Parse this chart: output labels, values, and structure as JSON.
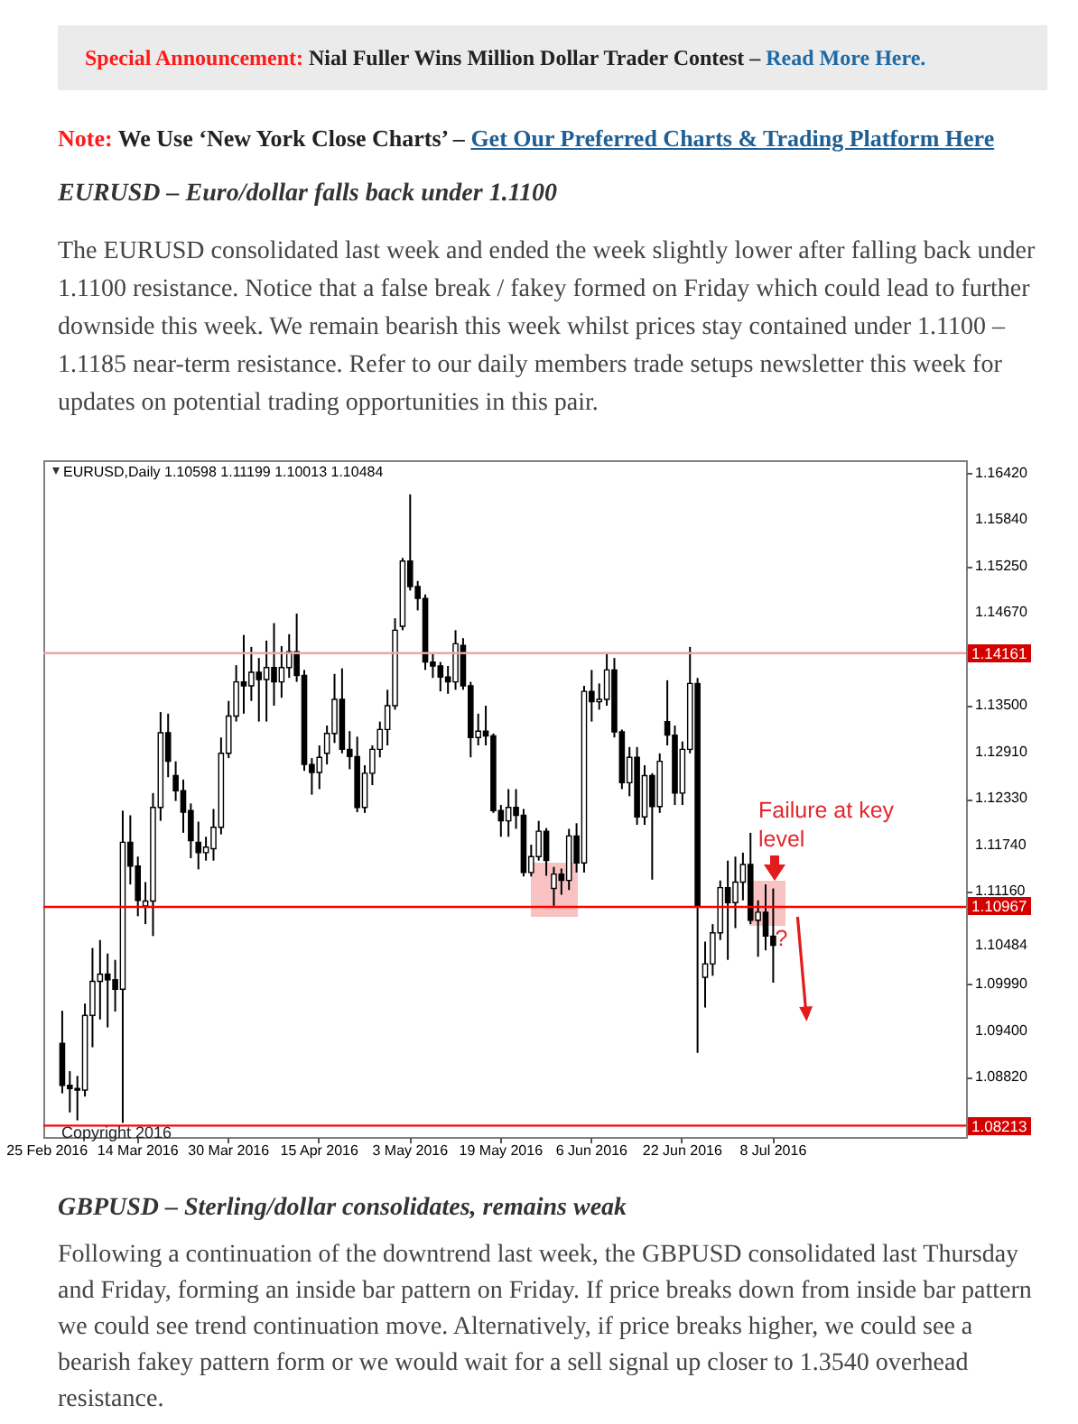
{
  "chart_data": {
    "type": "candlestick",
    "title": "EURUSD – Euro/dollar falls back under 1.1100",
    "subtitle": "The EURUSD consolidated last week and ended the week slightly lower after falling back under 1.1100 resistance. Notice that a false break / fakey formed on Friday which could lead to further downside this week. We remain bearish this week whilst prices stay contained under 1.1100 – 1.1185 near-term resistance. Refer to our daily members trade setups newsletter this week for updates on potential trading opportunities in this pair.",
    "annotations": [
      "Special Announcement:",
      "Nial Fuller Wins Million Dollar Trader Contest –",
      "Read More Here.",
      "Note:",
      "We Use ‘New York Close Charts’ –",
      "Get Our Preferred Charts & Trading Platform Here",
      "EURUSD,Daily 1.10598 1.11199 1.10013 1.10484",
      "Copyright 2016",
      "Failure at key level",
      {
        "text": "?",
        "x": "8 Jul 2016",
        "y": 1.1057
      },
      "GBPUSD – Sterling/dollar consolidates, remains weak",
      "Following a continuation of the downtrend last week, the GBPUSD consolidated last Thursday and Friday, forming an inside bar pattern on Friday. If price breaks down from inside bar pattern we could see trend continuation move. Alternatively, if price breaks higher, we could see a bearish fakey pattern form or we would wait for a sell signal up closer to 1.3540 overhead resistance."
    ],
    "categories": [
      "25 Feb 2016",
      null,
      null,
      null,
      null,
      null,
      null,
      null,
      null,
      null,
      null,
      null,
      "14 Mar 2016",
      null,
      null,
      null,
      null,
      null,
      null,
      null,
      null,
      null,
      null,
      null,
      "30 Mar 2016",
      null,
      null,
      null,
      null,
      null,
      null,
      null,
      null,
      null,
      null,
      null,
      "15 Apr 2016",
      null,
      null,
      null,
      null,
      null,
      null,
      null,
      null,
      null,
      null,
      null,
      "3 May 2016",
      null,
      null,
      null,
      null,
      null,
      null,
      null,
      null,
      null,
      null,
      null,
      "19 May 2016",
      null,
      null,
      null,
      null,
      null,
      null,
      null,
      null,
      null,
      null,
      null,
      "6 Jun 2016",
      null,
      null,
      null,
      null,
      null,
      null,
      null,
      null,
      null,
      null,
      null,
      "22 Jun 2016",
      null,
      null,
      null,
      null,
      null,
      null,
      null,
      null,
      null,
      null,
      null,
      "8 Jul 2016",
      null,
      null,
      null,
      null,
      null,
      null,
      null,
      null,
      null,
      null,
      null,
      null,
      null,
      null,
      null,
      null,
      null,
      null,
      null,
      null,
      null,
      null,
      null,
      null,
      null
    ],
    "ohlc": [
      null,
      null,
      [
        1.0925,
        1.0966,
        1.0862,
        1.0872
      ],
      [
        1.0872,
        1.089,
        1.0838,
        1.0868
      ],
      [
        1.0868,
        1.0884,
        1.0828,
        1.0866
      ],
      [
        1.0866,
        1.0975,
        1.0858,
        1.096
      ],
      [
        1.096,
        1.1045,
        1.092,
        1.1003
      ],
      [
        1.1003,
        1.1055,
        1.0955,
        1.1012
      ],
      [
        1.1012,
        1.1038,
        1.0945,
        1.1005
      ],
      [
        1.1005,
        1.103,
        1.0965,
        1.0993
      ],
      [
        1.0993,
        1.1218,
        1.0825,
        1.1178
      ],
      [
        1.1178,
        1.1212,
        1.1125,
        1.1148
      ],
      [
        1.1148,
        1.116,
        1.1085,
        1.1105
      ],
      [
        1.1098,
        1.1128,
        1.1075,
        1.1104
      ],
      [
        1.1104,
        1.124,
        1.106,
        1.1222
      ],
      [
        1.1222,
        1.1342,
        1.1205,
        1.1316
      ],
      [
        1.1316,
        1.134,
        1.126,
        1.128
      ],
      [
        1.1262,
        1.128,
        1.123,
        1.1243
      ],
      [
        1.1243,
        1.1257,
        1.119,
        1.1216
      ],
      [
        1.1218,
        1.1227,
        1.1158,
        1.118
      ],
      [
        1.1178,
        1.1204,
        1.1144,
        1.1165
      ],
      [
        1.1165,
        1.1185,
        1.1155,
        1.1172
      ],
      [
        1.117,
        1.122,
        1.1155,
        1.1197
      ],
      [
        1.1197,
        1.131,
        1.1188,
        1.129
      ],
      [
        1.129,
        1.1356,
        1.1284,
        1.1337
      ],
      [
        1.1337,
        1.1401,
        1.133,
        1.138
      ],
      [
        1.138,
        1.1439,
        1.134,
        1.1375
      ],
      [
        1.1375,
        1.1424,
        1.1356,
        1.1392
      ],
      [
        1.1392,
        1.141,
        1.133,
        1.1383
      ],
      [
        1.1383,
        1.1432,
        1.133,
        1.1398
      ],
      [
        1.1398,
        1.1454,
        1.135,
        1.138
      ],
      [
        1.138,
        1.1425,
        1.136,
        1.1398
      ],
      [
        1.1398,
        1.144,
        1.1385,
        1.1418
      ],
      [
        1.1418,
        1.1466,
        1.138,
        1.1388
      ],
      [
        1.1388,
        1.1395,
        1.1268,
        1.1276
      ],
      [
        1.1276,
        1.1284,
        1.1238,
        1.1266
      ],
      [
        1.1266,
        1.13,
        1.1245,
        1.1285
      ],
      [
        1.129,
        1.1325,
        1.1276,
        1.1315
      ],
      [
        1.1315,
        1.139,
        1.1303,
        1.1358
      ],
      [
        1.1358,
        1.1397,
        1.129,
        1.1295
      ],
      [
        1.1295,
        1.1318,
        1.127,
        1.1286
      ],
      [
        1.1286,
        1.1311,
        1.1216,
        1.1222
      ],
      [
        1.1222,
        1.1275,
        1.1215,
        1.1265
      ],
      [
        1.1265,
        1.13,
        1.125,
        1.1295
      ],
      [
        1.1295,
        1.133,
        1.1285,
        1.132
      ],
      [
        1.132,
        1.137,
        1.13,
        1.135
      ],
      [
        1.135,
        1.146,
        1.1345,
        1.1445
      ],
      [
        1.145,
        1.1536,
        1.1445,
        1.1532
      ],
      [
        1.1532,
        1.1616,
        1.1495,
        1.15
      ],
      [
        1.15,
        1.1507,
        1.147,
        1.1485
      ],
      [
        1.1485,
        1.149,
        1.1395,
        1.1405
      ],
      [
        1.1405,
        1.1416,
        1.1385,
        1.14
      ],
      [
        1.14,
        1.1405,
        1.1368,
        1.1386
      ],
      [
        1.1386,
        1.14,
        1.1365,
        1.138
      ],
      [
        1.138,
        1.1445,
        1.137,
        1.1428
      ],
      [
        1.1426,
        1.1435,
        1.137,
        1.1375
      ],
      [
        1.1375,
        1.138,
        1.1285,
        1.131
      ],
      [
        1.131,
        1.134,
        1.13,
        1.1318
      ],
      [
        1.1318,
        1.135,
        1.13,
        1.1312
      ],
      [
        1.1312,
        1.1315,
        1.1215,
        1.1218
      ],
      [
        1.1218,
        1.1225,
        1.1185,
        1.1205
      ],
      [
        1.1205,
        1.1245,
        1.1185,
        1.1222
      ],
      [
        1.1222,
        1.1245,
        1.1195,
        1.1212
      ],
      [
        1.1212,
        1.122,
        1.1135,
        1.114
      ],
      [
        1.114,
        1.1175,
        1.1135,
        1.116
      ],
      [
        1.116,
        1.1205,
        1.1155,
        1.1192
      ],
      [
        1.1192,
        1.1196,
        1.1136,
        1.1155
      ],
      [
        1.112,
        1.1147,
        1.1098,
        1.1138
      ],
      [
        1.1138,
        1.1145,
        1.1112,
        1.113
      ],
      [
        1.113,
        1.1195,
        1.1118,
        1.1186
      ],
      [
        1.1186,
        1.1202,
        1.114,
        1.1152
      ],
      [
        1.1152,
        1.1375,
        1.114,
        1.1368
      ],
      [
        1.1368,
        1.1395,
        1.133,
        1.1355
      ],
      [
        1.1355,
        1.1378,
        1.1345,
        1.1358
      ],
      [
        1.1358,
        1.1416,
        1.135,
        1.1395
      ],
      [
        1.1395,
        1.141,
        1.131,
        1.1317
      ],
      [
        1.1317,
        1.132,
        1.1245,
        1.1253
      ],
      [
        1.1253,
        1.1298,
        1.1236,
        1.1285
      ],
      [
        1.1285,
        1.1298,
        1.12,
        1.121
      ],
      [
        1.121,
        1.1275,
        1.12,
        1.1262
      ],
      [
        1.1262,
        1.1265,
        1.1131,
        1.1223
      ],
      [
        1.1223,
        1.129,
        1.1215,
        1.128
      ],
      [
        1.133,
        1.1382,
        1.13,
        1.1313
      ],
      [
        1.1313,
        1.1325,
        1.1225,
        1.124
      ],
      [
        1.124,
        1.1305,
        1.1225,
        1.1295
      ],
      [
        1.1295,
        1.1424,
        1.129,
        1.1378
      ],
      [
        1.1378,
        1.1385,
        1.0913,
        1.1098
      ],
      [
        1.1008,
        1.1053,
        1.097,
        1.1025
      ],
      [
        1.1025,
        1.1075,
        1.101,
        1.1064
      ],
      [
        1.1064,
        1.113,
        1.1055,
        1.1121
      ],
      [
        1.1121,
        1.1155,
        1.103,
        1.1102
      ],
      [
        1.1102,
        1.116,
        1.107,
        1.1128
      ],
      [
        1.1128,
        1.1165,
        1.1105,
        1.115
      ],
      [
        1.115,
        1.119,
        1.1075,
        1.108
      ],
      [
        1.108,
        1.1105,
        1.1034,
        1.109
      ],
      [
        1.109,
        1.1125,
        1.1042,
        1.106
      ],
      [
        1.10598,
        1.11199,
        1.10013,
        1.10484
      ],
      null,
      null,
      null,
      null,
      null,
      null,
      null,
      null,
      null,
      null,
      null,
      null,
      null,
      null,
      null,
      null,
      null,
      null,
      null,
      null,
      null,
      null,
      null,
      null,
      null
    ],
    "colors": [
      null,
      null,
      "#000000",
      "#000000",
      "#000000",
      "#ffffff",
      "#ffffff",
      "#ffffff",
      "#000000",
      "#000000",
      "#ffffff",
      "#000000",
      "#000000",
      "#ffffff",
      "#ffffff",
      "#ffffff",
      "#000000",
      "#000000",
      "#000000",
      "#000000",
      "#000000",
      "#ffffff",
      "#ffffff",
      "#ffffff",
      "#ffffff",
      "#ffffff",
      "#000000",
      "#ffffff",
      "#000000",
      "#ffffff",
      "#000000",
      "#ffffff",
      "#ffffff",
      "#000000",
      "#000000",
      "#000000",
      "#ffffff",
      "#ffffff",
      "#ffffff",
      "#000000",
      "#000000",
      "#000000",
      "#ffffff",
      "#ffffff",
      "#ffffff",
      "#ffffff",
      "#ffffff",
      "#ffffff",
      "#000000",
      "#000000",
      "#000000",
      "#000000",
      "#000000",
      "#000000",
      "#ffffff",
      "#000000",
      "#000000",
      "#ffffff",
      "#000000",
      "#000000",
      "#000000",
      "#ffffff",
      "#000000",
      "#000000",
      "#ffffff",
      "#ffffff",
      "#000000",
      "#ffffff",
      "#000000",
      "#ffffff",
      "#000000",
      "#ffffff",
      "#000000",
      "#ffffff",
      "#ffffff",
      "#000000",
      "#000000",
      "#ffffff",
      "#000000",
      "#ffffff",
      "#000000",
      "#ffffff",
      "#000000",
      "#000000",
      "#ffffff",
      "#ffffff",
      "#000000",
      "#ffffff",
      "#ffffff",
      "#ffffff",
      "#000000",
      "#ffffff",
      "#ffffff",
      "#000000",
      "#ffffff",
      "#000000",
      "#000000",
      null,
      null,
      null,
      null,
      null,
      null,
      null,
      null,
      null,
      null,
      null,
      null,
      null,
      null,
      null,
      null,
      null,
      null,
      null,
      null,
      null,
      null,
      null,
      null,
      null
    ],
    "ylim": [
      1.0807,
      1.1659
    ],
    "yticks": [
      {
        "value": 1.1642,
        "label": "1.16420"
      },
      {
        "value": 1.1584,
        "label": "1.15840"
      },
      {
        "value": 1.1525,
        "label": "1.15250"
      },
      {
        "value": 1.1467,
        "label": "1.14670"
      },
      {
        "value": 1.135,
        "label": "1.13500"
      },
      {
        "value": 1.1291,
        "label": "1.12910"
      },
      {
        "value": 1.1233,
        "label": "1.12330"
      },
      {
        "value": 1.1174,
        "label": "1.11740"
      },
      {
        "value": 1.1116,
        "label": "1.11160"
      },
      {
        "value": 1.10484,
        "label": "1.10484"
      },
      {
        "value": 1.0999,
        "label": "1.09990"
      },
      {
        "value": 1.094,
        "label": "1.09400"
      },
      {
        "value": 1.0882,
        "label": "1.08820"
      }
    ],
    "ref_lines": [
      {
        "axis": "y",
        "value": 1.14161,
        "label": "1.14161",
        "color": "#f4a3a3"
      },
      {
        "axis": "y",
        "value": 1.10967,
        "label": "1.10967",
        "color": "#ff0000"
      },
      {
        "axis": "y",
        "value": 1.08213,
        "label": "1.08213",
        "color": "#ff0000"
      }
    ]
  }
}
